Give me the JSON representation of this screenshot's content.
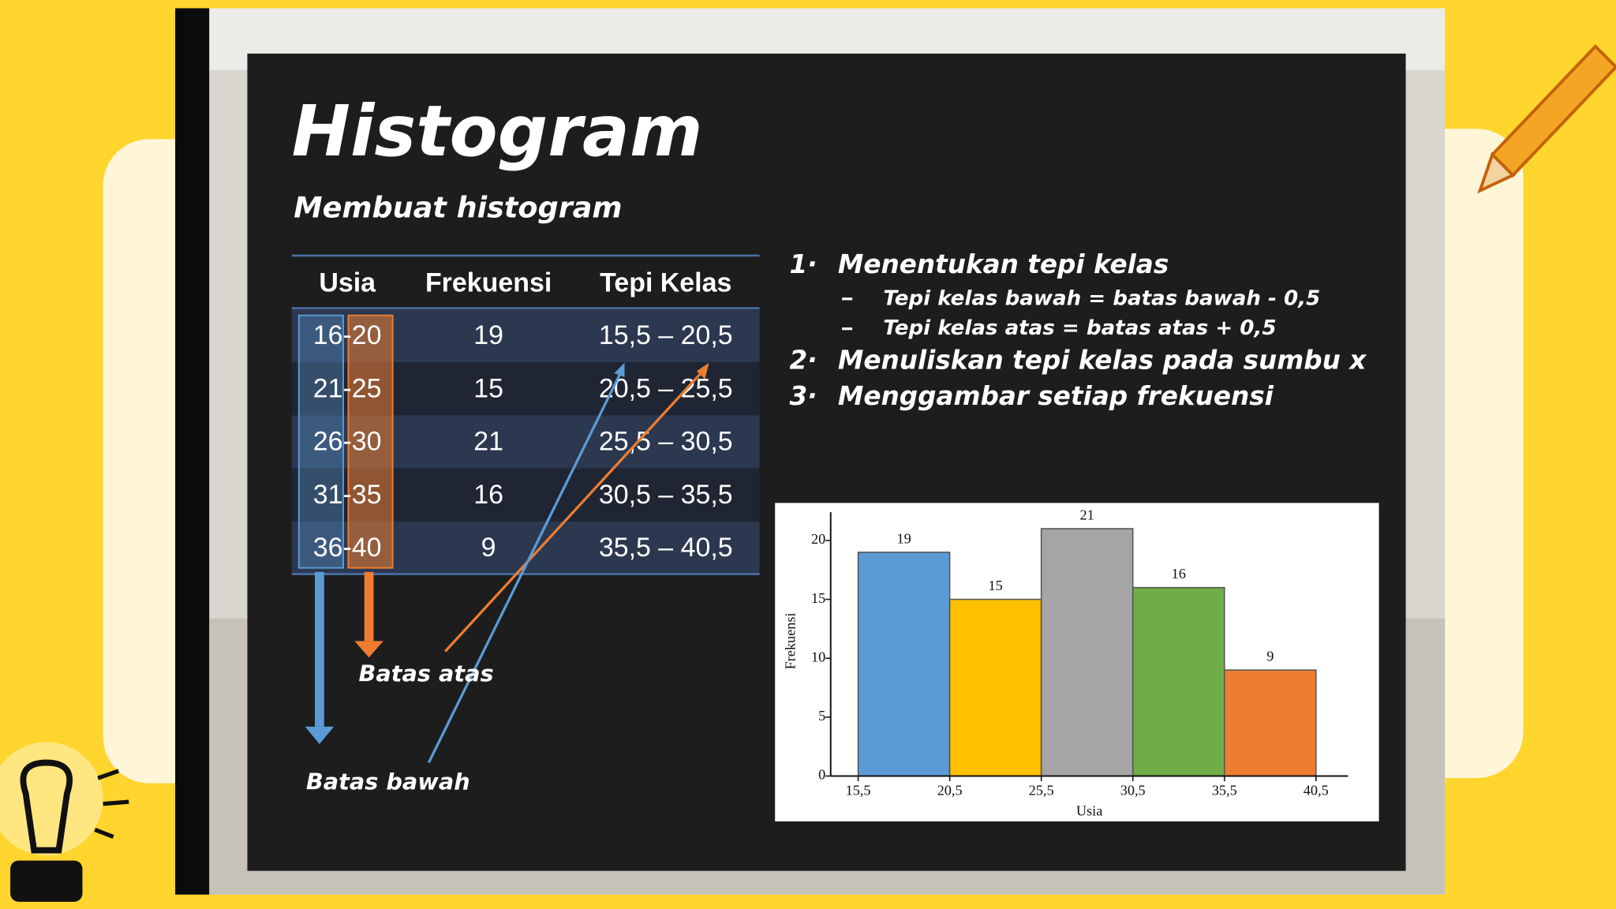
{
  "title": "Histogram",
  "subtitle": "Membuat histogram",
  "table": {
    "header": [
      "Usia",
      "Frekuensi",
      "Tepi Kelas"
    ],
    "rows": [
      [
        "16-20",
        "19",
        "15,5 – 20,5"
      ],
      [
        "21-25",
        "15",
        "20,5 – 25,5"
      ],
      [
        "26-30",
        "21",
        "25,5 – 30,5"
      ],
      [
        "31-35",
        "16",
        "30,5 – 35,5"
      ],
      [
        "36-40",
        "9",
        "35,5 – 40,5"
      ]
    ]
  },
  "steps": [
    {
      "number": "1·",
      "text": "Menentukan tepi kelas",
      "sub": [
        "Tepi kelas bawah = batas bawah - 0,5",
        "Tepi kelas atas = batas atas + 0,5"
      ]
    },
    {
      "number": "2·",
      "text": "Menuliskan tepi kelas pada sumbu x"
    },
    {
      "number": "3·",
      "text": "Menggambar setiap frekuensi"
    }
  ],
  "annotations": [
    "Batas atas",
    "Batas bawah"
  ],
  "chart_data": {
    "type": "histogram",
    "xlabel": "Usia",
    "ylabel": "Frekuensi",
    "bins": [
      15.5,
      20.5,
      25.5,
      30.5,
      35.5,
      40.5
    ],
    "values": [
      19,
      15,
      21,
      16,
      9
    ],
    "colors": [
      "#5b9bd5",
      "#ffc000",
      "#a5a5a5",
      "#70ad47",
      "#ed7d31"
    ],
    "xlim": [
      14,
      42.25
    ],
    "ylim": [
      0,
      22.4
    ],
    "xticks": [
      {
        "value": 15.5,
        "label": "15,5"
      },
      {
        "value": 20.5,
        "label": "20,5"
      },
      {
        "value": 25.5,
        "label": "25,5"
      },
      {
        "value": 30.5,
        "label": "30,5"
      },
      {
        "value": 35.5,
        "label": "35,5"
      },
      {
        "value": 40.5,
        "label": "40,5"
      }
    ],
    "yticks": [
      0,
      5,
      10,
      15,
      20
    ]
  }
}
